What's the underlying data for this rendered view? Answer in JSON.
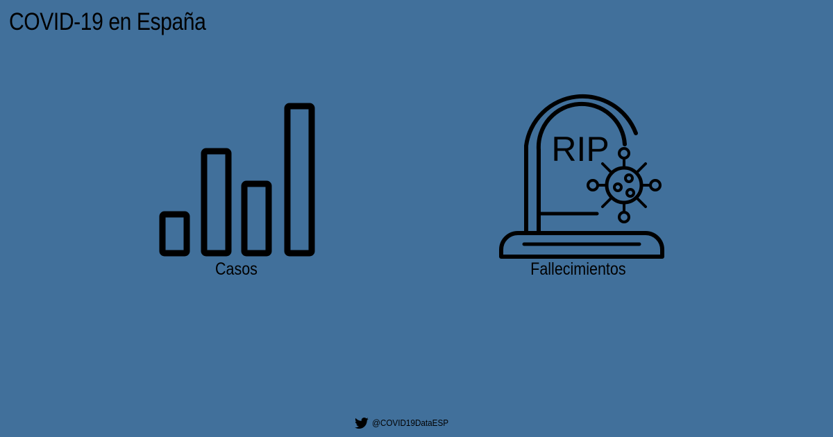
{
  "header": {
    "title": "COVID-19 en España"
  },
  "cards": [
    {
      "label": "Casos",
      "icon": "bar-chart-icon"
    },
    {
      "label": "Fallecimientos",
      "icon": "tombstone-virus-icon"
    }
  ],
  "tombstone": {
    "inscription": "RIP"
  },
  "footer": {
    "icon": "twitter-icon",
    "handle": "@COVID19DataESP"
  },
  "colors": {
    "background": "#41709b",
    "foreground": "#000000"
  }
}
